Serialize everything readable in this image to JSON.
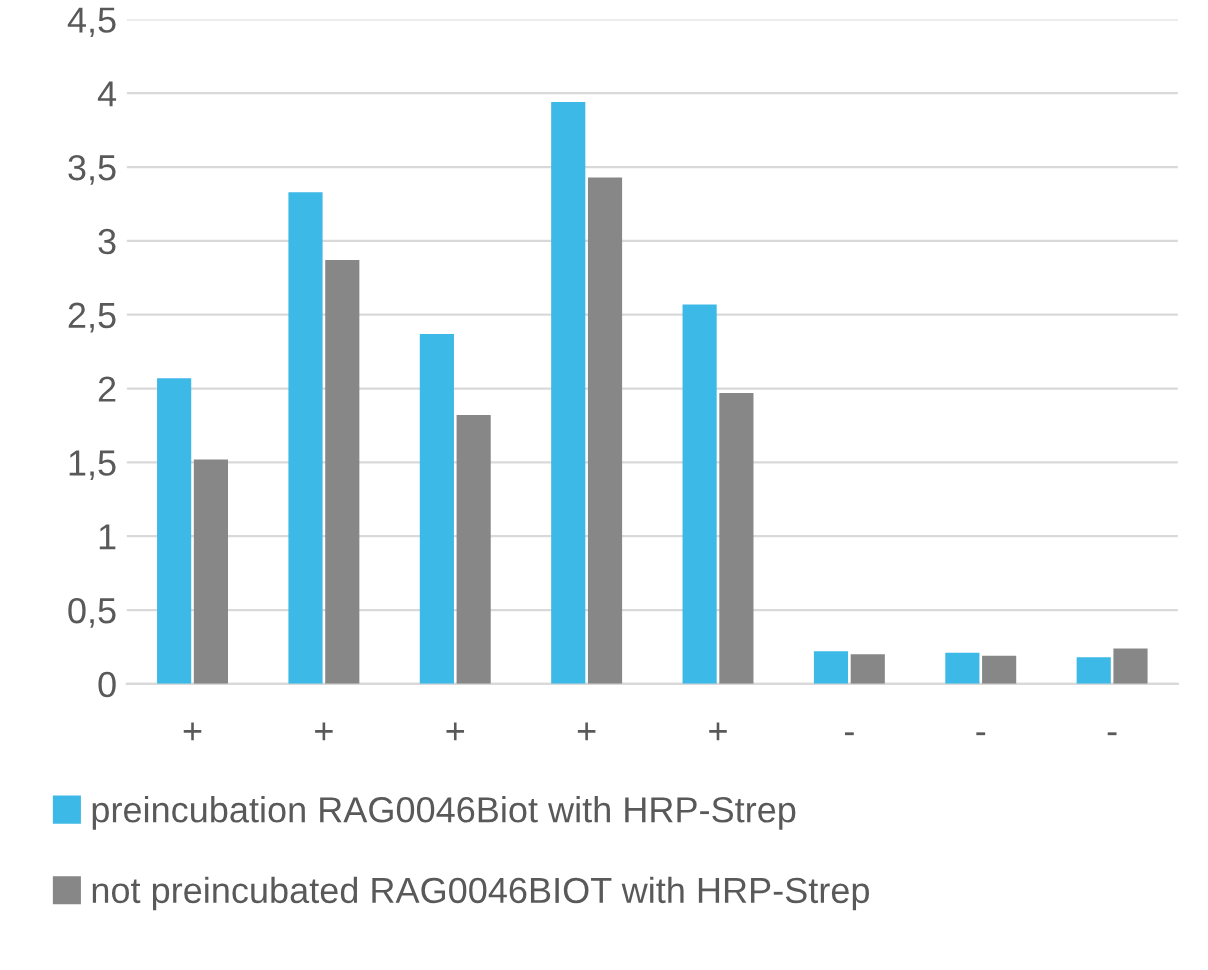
{
  "chart_data": {
    "type": "bar",
    "categories": [
      "+",
      "+",
      "+",
      "+",
      "+",
      "-",
      "-",
      "-"
    ],
    "series": [
      {
        "name": "preincubation RAG0046Biot with HRP-Strep",
        "color": "#3cb9e6",
        "values": [
          2.07,
          3.33,
          2.37,
          3.94,
          2.57,
          0.22,
          0.21,
          0.18
        ]
      },
      {
        "name": "not preincubated RAG0046BIOT with HRP-Strep",
        "color": "#878787",
        "values": [
          1.52,
          2.87,
          1.82,
          3.43,
          1.97,
          0.2,
          0.19,
          0.24
        ]
      }
    ],
    "ylim": [
      0,
      4.5
    ],
    "yticks": [
      0,
      {
        "value": 0.5,
        "label": "0,5"
      },
      1,
      {
        "value": 1.5,
        "label": "1,5"
      },
      2,
      {
        "value": 2.5,
        "label": "2,5"
      },
      3,
      {
        "value": 3.5,
        "label": "3,5"
      },
      4,
      {
        "value": 4.5,
        "label": "4,5"
      }
    ],
    "grid": "y",
    "legend": "bottom"
  }
}
